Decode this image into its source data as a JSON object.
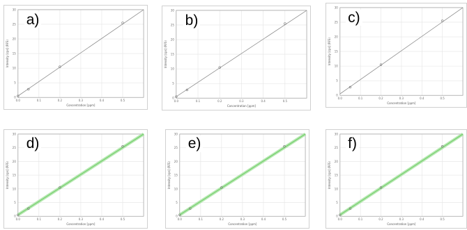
{
  "figure": {
    "panels": [
      {
        "label": "a)"
      },
      {
        "label": "b)"
      },
      {
        "label": "c)"
      },
      {
        "label": "d)"
      },
      {
        "label": "e)"
      },
      {
        "label": "f)"
      }
    ]
  },
  "colors": {
    "fit_line_plain": "#8c8c8c",
    "fit_band_green": "#a6e3a0",
    "fit_line_green": "#6ccb63",
    "point": "#777777",
    "grid": "#e4e4e4",
    "axis": "#9a9a9a"
  },
  "chart_data": [
    {
      "type": "scatter",
      "panel": "a)",
      "xlabel": "Concentration [ppm]",
      "ylabel": "Intensity [cps] (RFS)",
      "xlim": [
        0,
        0.6
      ],
      "ylim": [
        0,
        30
      ],
      "x_ticks": [
        "0.0",
        "0.1",
        "0.2",
        "0.3",
        "0.4",
        "0.5"
      ],
      "y_ticks": [
        "0",
        "5",
        "10",
        "15",
        "20",
        "25",
        "30"
      ],
      "grid": true,
      "band": false,
      "points": [
        {
          "x": 0.0,
          "y": 0.5
        },
        {
          "x": 0.05,
          "y": 2.8
        },
        {
          "x": 0.2,
          "y": 10.5
        },
        {
          "x": 0.5,
          "y": 25.5
        }
      ],
      "fit": [
        [
          0.0,
          0.5
        ],
        [
          0.6,
          30.0
        ]
      ]
    },
    {
      "type": "scatter",
      "panel": "b)",
      "xlabel": "Concentration [ppm]",
      "ylabel": "Intensity [cps] (RFS)",
      "xlim": [
        0,
        0.6
      ],
      "ylim": [
        0,
        30
      ],
      "x_ticks": [
        "0.0",
        "0.1",
        "0.2",
        "0.3",
        "0.4",
        "0.5"
      ],
      "y_ticks": [
        "0",
        "5",
        "10",
        "15",
        "20",
        "25",
        "30"
      ],
      "grid": true,
      "band": false,
      "points": [
        {
          "x": 0.0,
          "y": 0.5
        },
        {
          "x": 0.05,
          "y": 2.8
        },
        {
          "x": 0.2,
          "y": 10.5
        },
        {
          "x": 0.5,
          "y": 25.5
        }
      ],
      "fit": [
        [
          0.0,
          0.5
        ],
        [
          0.6,
          30.0
        ]
      ]
    },
    {
      "type": "scatter",
      "panel": "c)",
      "xlabel": "Concentration [ppm]",
      "ylabel": "Intensity [cps] (RFS)",
      "xlim": [
        0,
        0.6
      ],
      "ylim": [
        0,
        30
      ],
      "x_ticks": [
        "0.0",
        "0.1",
        "0.2",
        "0.3",
        "0.4",
        "0.5"
      ],
      "y_ticks": [
        "0",
        "5",
        "10",
        "15",
        "20",
        "25",
        "30"
      ],
      "grid": true,
      "band": false,
      "points": [
        {
          "x": 0.05,
          "y": 2.8
        },
        {
          "x": 0.2,
          "y": 10.5
        },
        {
          "x": 0.5,
          "y": 25.5
        }
      ],
      "fit": [
        [
          0.0,
          0.5
        ],
        [
          0.6,
          30.0
        ]
      ]
    },
    {
      "type": "scatter",
      "panel": "d)",
      "xlabel": "Concentration [ppm]",
      "ylabel": "Intensity [cps] (RFS)",
      "xlim": [
        0,
        0.6
      ],
      "ylim": [
        0,
        30
      ],
      "x_ticks": [
        "0.0",
        "0.1",
        "0.2",
        "0.3",
        "0.4",
        "0.5"
      ],
      "y_ticks": [
        "0",
        "5",
        "10",
        "15",
        "20",
        "25",
        "30"
      ],
      "grid": true,
      "band": true,
      "points": [
        {
          "x": 0.0,
          "y": 0.5
        },
        {
          "x": 0.05,
          "y": 2.8
        },
        {
          "x": 0.2,
          "y": 10.5
        },
        {
          "x": 0.5,
          "y": 25.5
        }
      ],
      "fit": [
        [
          0.0,
          0.5
        ],
        [
          0.6,
          30.0
        ]
      ]
    },
    {
      "type": "scatter",
      "panel": "e)",
      "xlabel": "Concentration [ppm]",
      "ylabel": "Intensity [cps] (RFS)",
      "xlim": [
        0,
        0.6
      ],
      "ylim": [
        0,
        30
      ],
      "x_ticks": [
        "0.0",
        "0.1",
        "0.2",
        "0.3",
        "0.4",
        "0.5"
      ],
      "y_ticks": [
        "0",
        "5",
        "10",
        "15",
        "20",
        "25",
        "30"
      ],
      "grid": true,
      "band": true,
      "points": [
        {
          "x": 0.0,
          "y": 0.5
        },
        {
          "x": 0.05,
          "y": 2.8
        },
        {
          "x": 0.2,
          "y": 10.5
        },
        {
          "x": 0.5,
          "y": 25.5
        }
      ],
      "fit": [
        [
          0.0,
          0.5
        ],
        [
          0.6,
          30.0
        ]
      ]
    },
    {
      "type": "scatter",
      "panel": "f)",
      "xlabel": "Concentration [ppm]",
      "ylabel": "Intensity [cps] (RFS)",
      "xlim": [
        0,
        0.6
      ],
      "ylim": [
        0,
        30
      ],
      "x_ticks": [
        "0.0",
        "0.1",
        "0.2",
        "0.3",
        "0.4",
        "0.5"
      ],
      "y_ticks": [
        "0",
        "5",
        "10",
        "15",
        "20",
        "25",
        "30"
      ],
      "grid": true,
      "band": true,
      "points": [
        {
          "x": 0.0,
          "y": 0.5
        },
        {
          "x": 0.05,
          "y": 2.8
        },
        {
          "x": 0.2,
          "y": 10.5
        },
        {
          "x": 0.5,
          "y": 25.5
        }
      ],
      "fit": [
        [
          0.0,
          0.5
        ],
        [
          0.6,
          30.0
        ]
      ]
    }
  ]
}
